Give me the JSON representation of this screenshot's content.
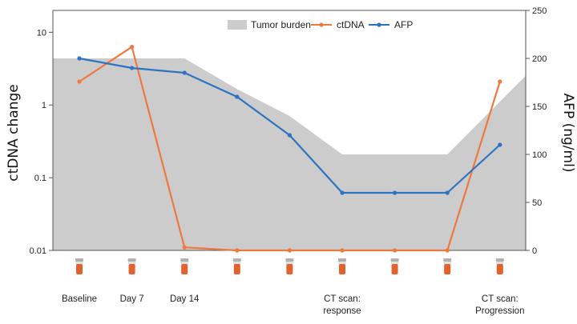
{
  "chart_data": {
    "type": "line",
    "x_positions": 9,
    "x_labels": [
      {
        "index": 0,
        "lines": [
          "Baseline"
        ]
      },
      {
        "index": 1,
        "lines": [
          "Day 7"
        ]
      },
      {
        "index": 2,
        "lines": [
          "Day 14"
        ]
      },
      {
        "index": 5,
        "lines": [
          "CT scan:",
          "response"
        ]
      },
      {
        "index": 8,
        "lines": [
          "CT scan:",
          "Progression"
        ]
      }
    ],
    "ylabel_left": "ctDNA change",
    "ylabel_right": "AFP (ng/ml)",
    "yleft": {
      "scale": "log",
      "ylim": [
        0.01,
        20
      ],
      "ticks": [
        0.01,
        0.1,
        1,
        10
      ],
      "tick_labels": [
        "0.01",
        "0.1",
        "1",
        "10"
      ]
    },
    "yright": {
      "scale": "linear",
      "ylim": [
        0,
        250
      ],
      "ticks": [
        0,
        50,
        100,
        150,
        200,
        250
      ],
      "tick_labels": [
        "0",
        "50",
        "100",
        "150",
        "200",
        "250"
      ]
    },
    "area": {
      "name": "Tumor burden",
      "color": "#cccccc",
      "x": [
        -0.5,
        2.0,
        3.0,
        4.0,
        5.0,
        6.0,
        7.0,
        8.5
      ],
      "values": [
        200,
        200,
        168,
        140,
        100,
        100,
        100,
        182
      ]
    },
    "series": [
      {
        "name": "ctDNA",
        "axis": "left",
        "color": "#f0783c",
        "values": [
          2.1,
          6.3,
          0.011,
          0.01,
          0.01,
          0.01,
          0.01,
          0.01,
          2.1
        ]
      },
      {
        "name": "AFP",
        "axis": "right",
        "color": "#2d73c2",
        "values": [
          200,
          190,
          185,
          160,
          120,
          60,
          60,
          60,
          110
        ]
      }
    ],
    "legend": {
      "position": "top-right"
    },
    "markers": {
      "name": "sample tube",
      "count": 9,
      "cap_color": "#b0b0b0",
      "body_color": "#e2622e"
    }
  }
}
